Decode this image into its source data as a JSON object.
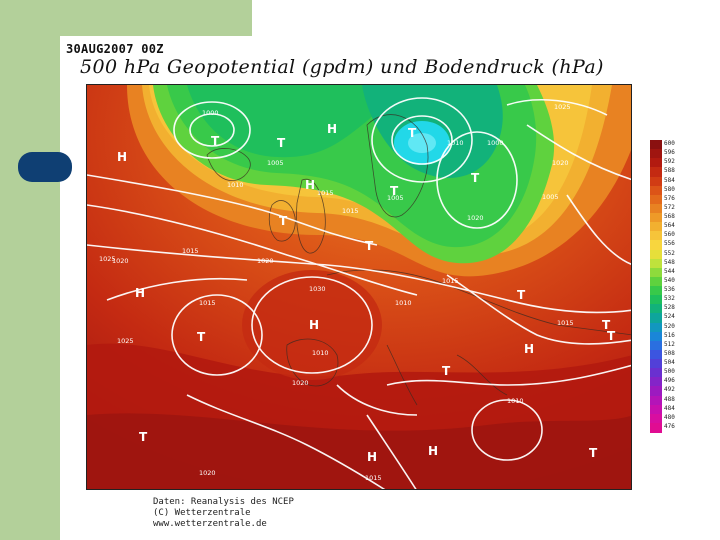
{
  "header": {
    "date_line": "30AUG2007 00Z",
    "title": "500 hPa Geopotential (gpdm) und Bodendruck (hPa)"
  },
  "colors": {
    "slide_panel": "#b3d09a",
    "tab_pill": "#0f3f73",
    "isobar": "#ffffff",
    "low_center": "#22d8e8",
    "ridge_red": "#b21a10"
  },
  "map": {
    "pressure_centers": [
      {
        "symbol": "H"
      },
      {
        "symbol": "H"
      },
      {
        "symbol": "H"
      },
      {
        "symbol": "H"
      },
      {
        "symbol": "H"
      },
      {
        "symbol": "H"
      },
      {
        "symbol": "H"
      },
      {
        "symbol": "H"
      },
      {
        "symbol": "T"
      },
      {
        "symbol": "T"
      },
      {
        "symbol": "T"
      },
      {
        "symbol": "T"
      },
      {
        "symbol": "T"
      },
      {
        "symbol": "T"
      },
      {
        "symbol": "T"
      },
      {
        "symbol": "T"
      },
      {
        "symbol": "T"
      },
      {
        "symbol": "T"
      },
      {
        "symbol": "T"
      },
      {
        "symbol": "T"
      },
      {
        "symbol": "T"
      },
      {
        "symbol": "T"
      }
    ],
    "isobar_labels": [
      "1000",
      "1005",
      "1010",
      "1015",
      "1020",
      "1025",
      "1030",
      "1005",
      "1000",
      "1010",
      "1015",
      "1020",
      "1025",
      "1015",
      "1010",
      "1015",
      "1020",
      "1015",
      "1025",
      "1020",
      "1015",
      "1010",
      "1005",
      "1010",
      "1020",
      "1015",
      "1020"
    ]
  },
  "legend": {
    "labels": [
      "600",
      "596",
      "592",
      "588",
      "584",
      "580",
      "576",
      "572",
      "568",
      "564",
      "560",
      "556",
      "552",
      "548",
      "544",
      "540",
      "536",
      "532",
      "528",
      "524",
      "520",
      "516",
      "512",
      "508",
      "504",
      "500",
      "496",
      "492",
      "488",
      "484",
      "480",
      "476"
    ],
    "colors": [
      "#8a1010",
      "#a01510",
      "#b21a10",
      "#c42a12",
      "#d13c14",
      "#dc5418",
      "#e36a1c",
      "#e88222",
      "#ee9a28",
      "#f2b030",
      "#f6c43a",
      "#f8d63e",
      "#e6df3a",
      "#bfe23c",
      "#8edb3c",
      "#5fd23e",
      "#38c94a",
      "#1fbf5c",
      "#12b27a",
      "#0ea59c",
      "#1297bf",
      "#1a86d8",
      "#2a6fe0",
      "#3c55e0",
      "#5240d8",
      "#6a30d0",
      "#8424c8",
      "#9c1ac0",
      "#b414b8",
      "#c810ae",
      "#d80ea0",
      "#e00c92"
    ]
  },
  "credit": {
    "line1": "Daten: Reanalysis des NCEP",
    "line2": "(C) Wetterzentrale",
    "line3": "www.wetterzentrale.de"
  }
}
